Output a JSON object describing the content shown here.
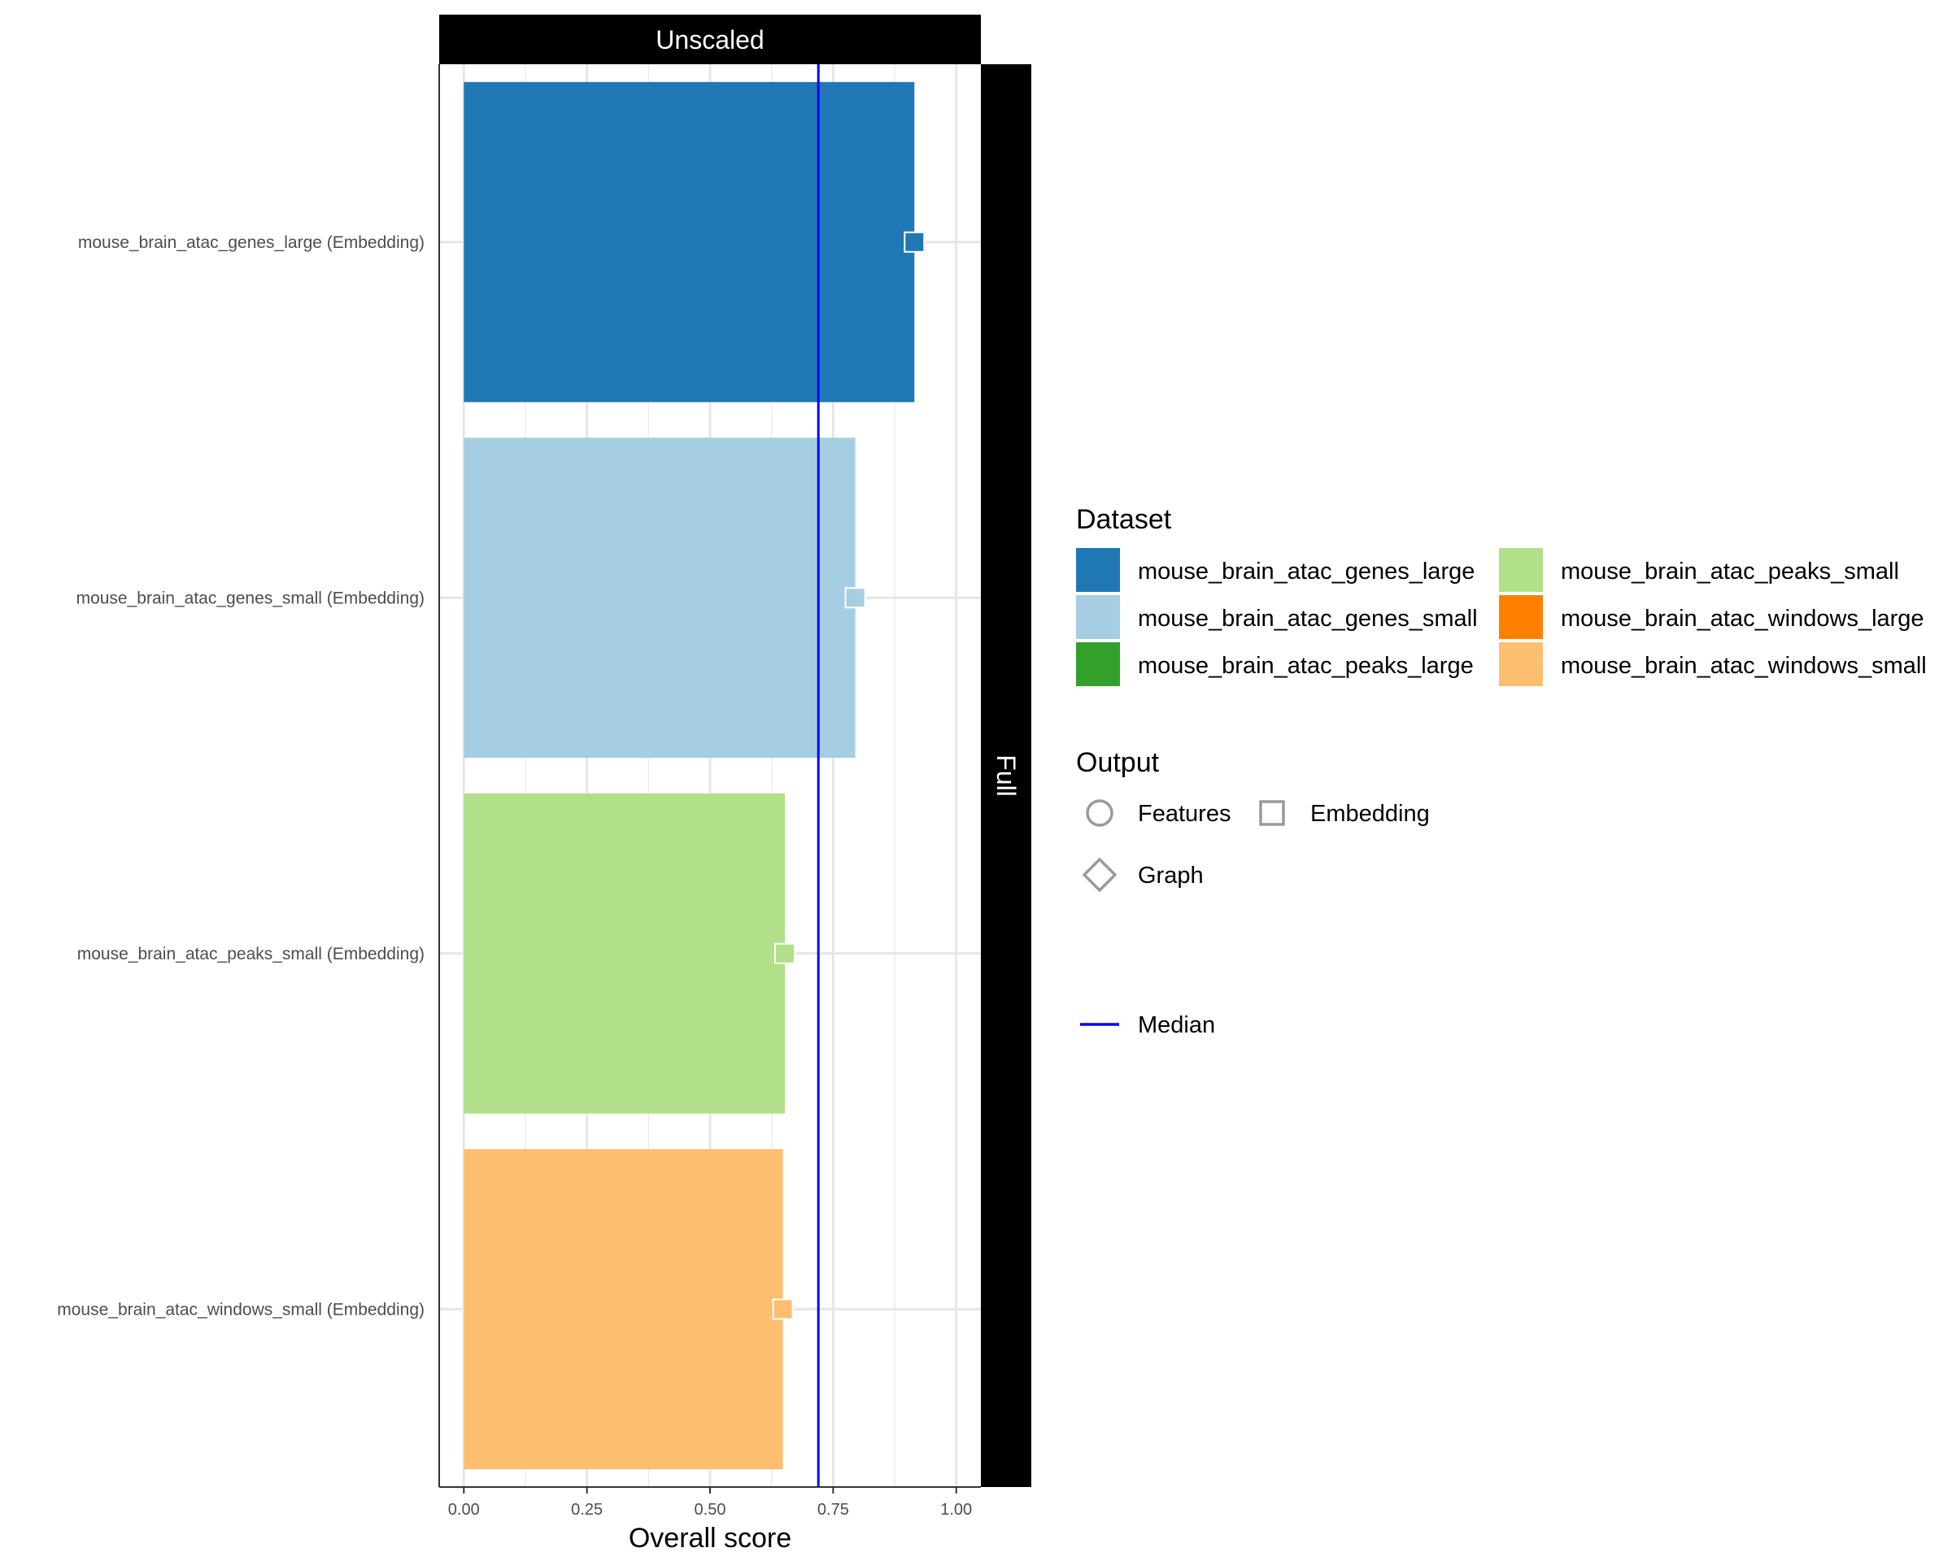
{
  "chart_data": {
    "type": "bar",
    "orientation": "horizontal",
    "facet_top": "Unscaled",
    "facet_right": "Full",
    "xlabel": "Overall score",
    "xlim": [
      -0.05,
      1.05
    ],
    "x_ticks": [
      0,
      0.25,
      0.5,
      0.75,
      1
    ],
    "x_tick_labels": [
      "0.00",
      "0.25",
      "0.50",
      "0.75",
      "1.00"
    ],
    "grid": true,
    "median": 0.72,
    "categories": [
      "mouse_brain_atac_genes_large (Embedding)",
      "mouse_brain_atac_genes_small (Embedding)",
      "mouse_brain_atac_peaks_small (Embedding)",
      "mouse_brain_atac_windows_small (Embedding)"
    ],
    "bars": [
      {
        "dataset": "mouse_brain_atac_genes_large",
        "output": "Embedding",
        "value": 0.915,
        "color": "#1f78b4"
      },
      {
        "dataset": "mouse_brain_atac_genes_small",
        "output": "Embedding",
        "value": 0.795,
        "color": "#a6cee3"
      },
      {
        "dataset": "mouse_brain_atac_peaks_small",
        "output": "Embedding",
        "value": 0.652,
        "color": "#b2df8a"
      },
      {
        "dataset": "mouse_brain_atac_windows_small",
        "output": "Embedding",
        "value": 0.648,
        "color": "#fdbf6f"
      }
    ],
    "legend": {
      "placement": "right",
      "dataset_title": "Dataset",
      "datasets": [
        {
          "name": "mouse_brain_atac_genes_large",
          "color": "#1f78b4"
        },
        {
          "name": "mouse_brain_atac_genes_small",
          "color": "#a6cee3"
        },
        {
          "name": "mouse_brain_atac_peaks_large",
          "color": "#33a02c"
        },
        {
          "name": "mouse_brain_atac_peaks_small",
          "color": "#b2df8a"
        },
        {
          "name": "mouse_brain_atac_windows_large",
          "color": "#ff7f00"
        },
        {
          "name": "mouse_brain_atac_windows_small",
          "color": "#fdbf6f"
        }
      ],
      "output_title": "Output",
      "outputs": [
        {
          "name": "Features",
          "shape": "circle"
        },
        {
          "name": "Embedding",
          "shape": "square"
        },
        {
          "name": "Graph",
          "shape": "diamond"
        }
      ],
      "median_label": "Median",
      "median_color": "#0000ff"
    }
  }
}
